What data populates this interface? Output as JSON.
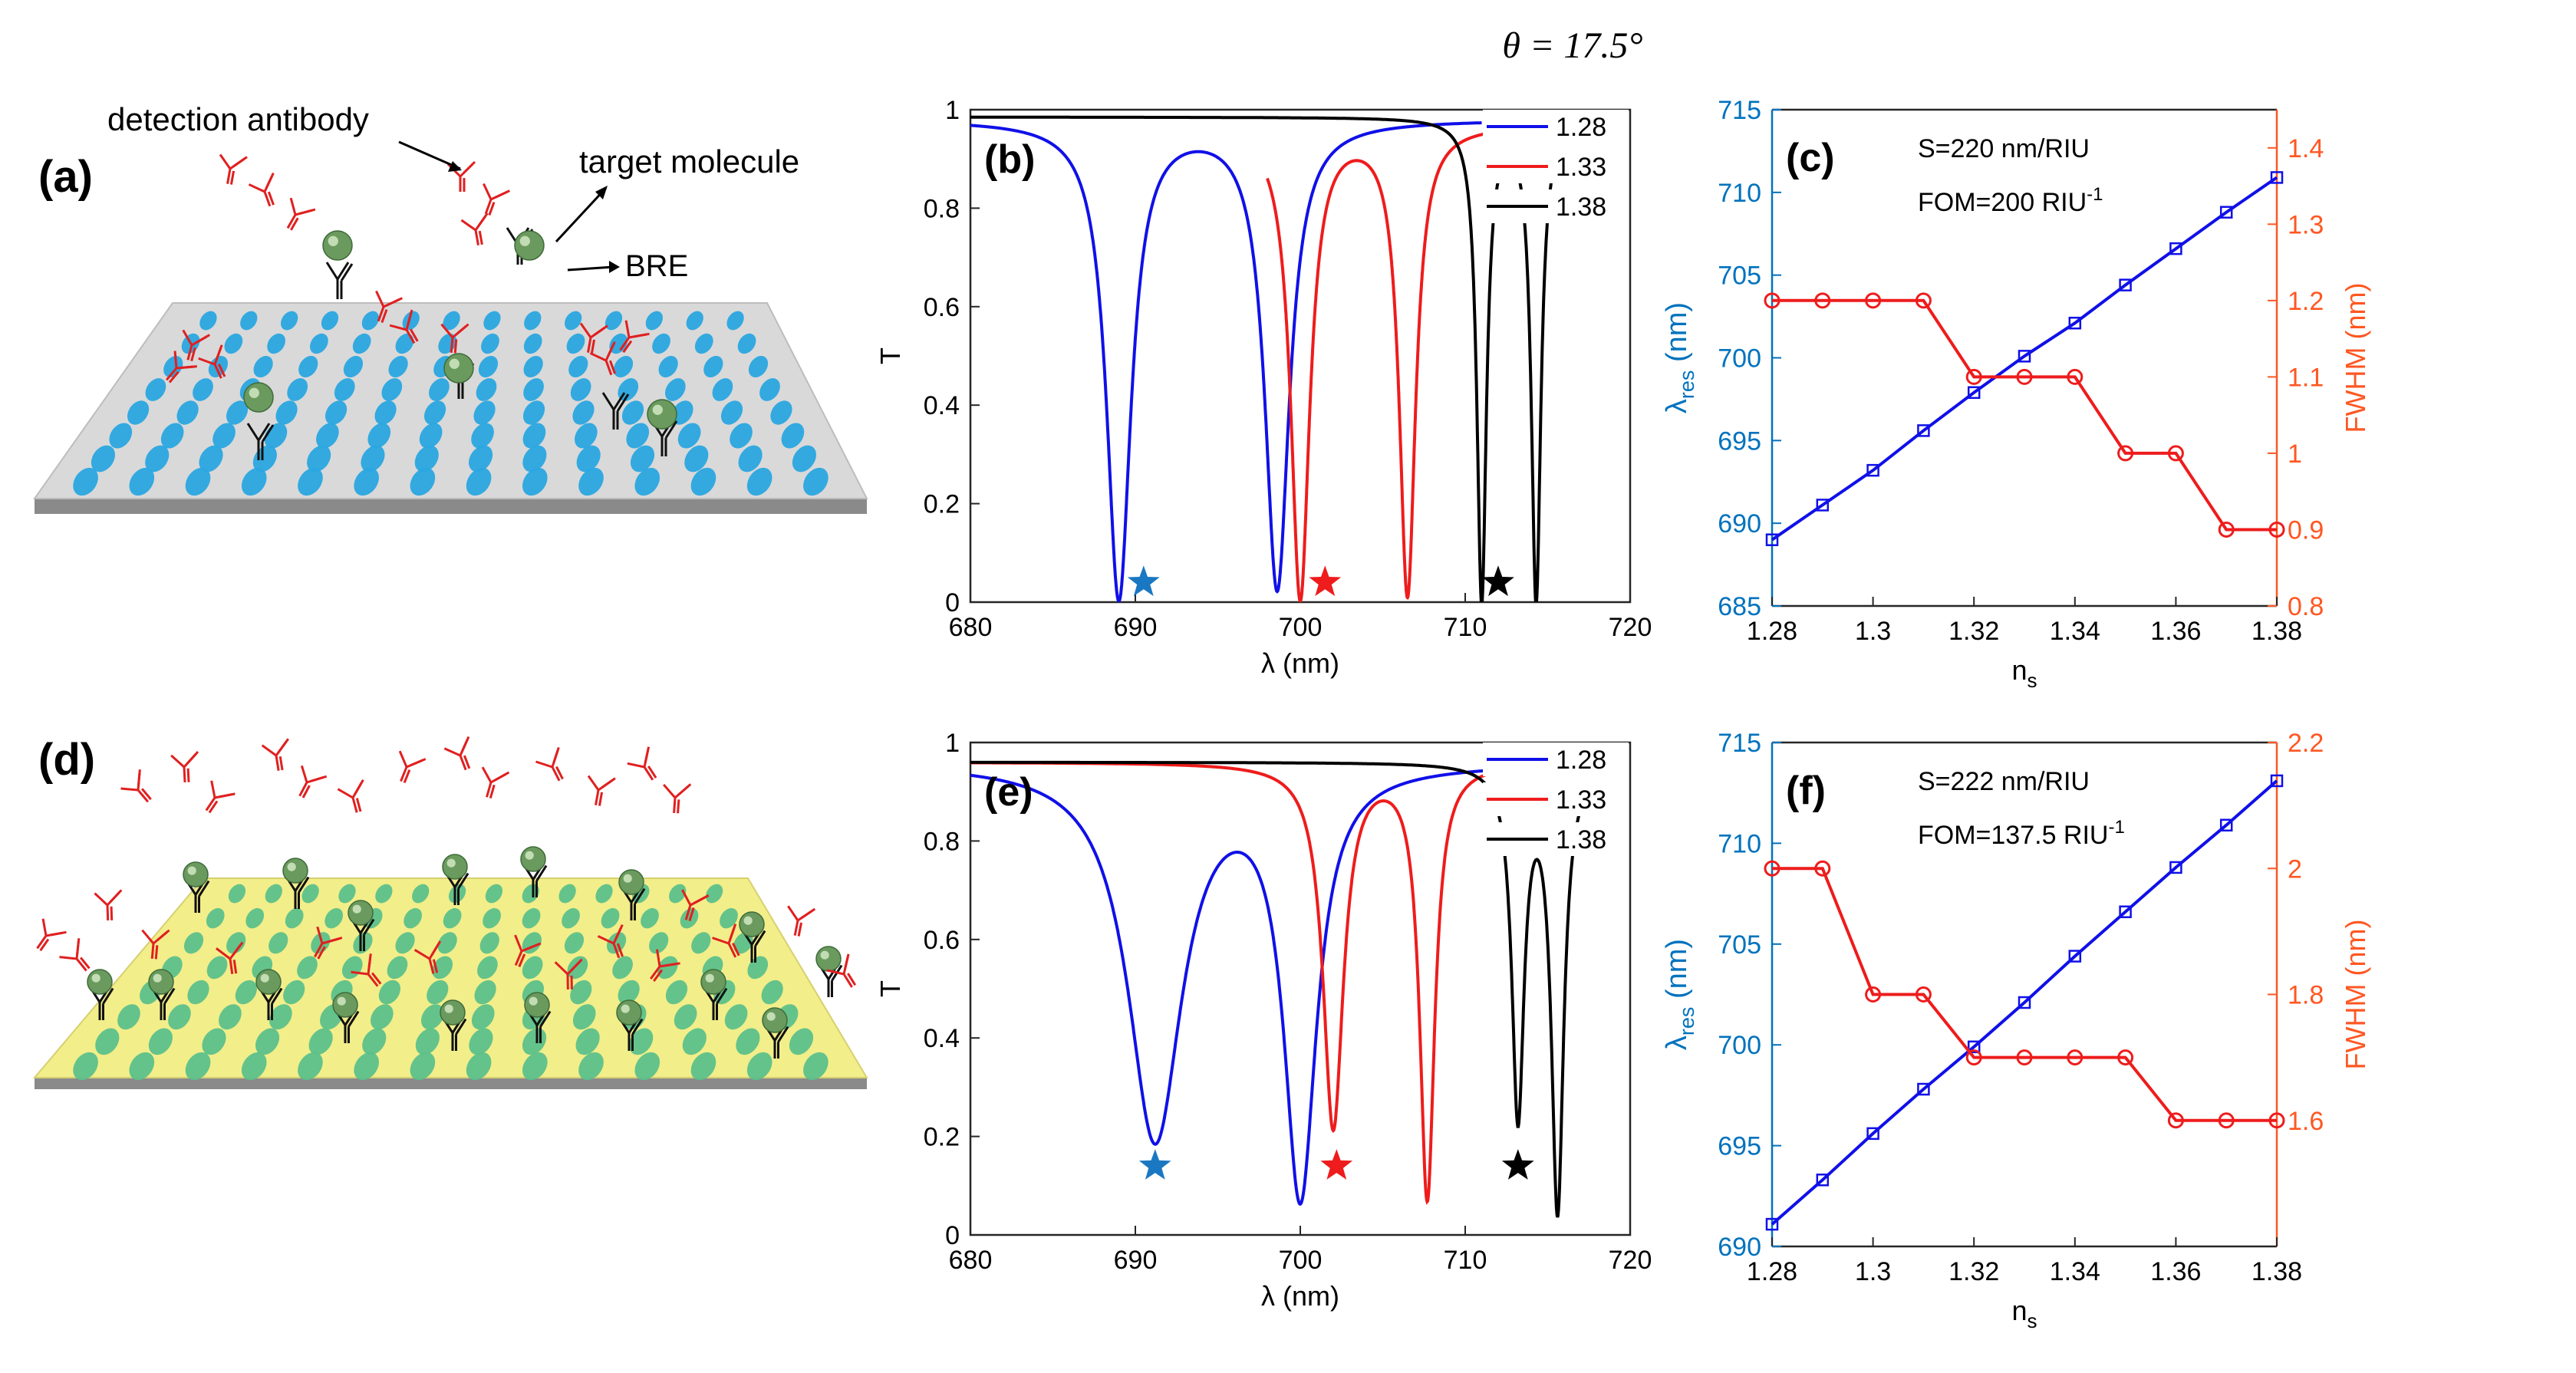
{
  "figure": {
    "theta_label": "θ = 17.5°",
    "colors": {
      "blue": "#1010e8",
      "red": "#ee1c1c",
      "black": "#000000",
      "axis_left": "#0072bd",
      "axis_right": "#ff5722",
      "ff_red": "#e02020"
    }
  },
  "schematic_a": {
    "panel": "(a)",
    "detection_antibody": "detection antibody",
    "target_molecule": "target molecule",
    "bre": "BRE",
    "substrate_color": "#d9d9d9",
    "particle_color": "#2aa6e0"
  },
  "schematic_d": {
    "panel": "(d)",
    "substrate_color": "#f2ee8a",
    "particle_color": "#5cc08a"
  },
  "chart_data": [
    {
      "id": "b",
      "panel": "(b)",
      "type": "line",
      "xlabel": "λ (nm)",
      "ylabel": "T",
      "xlim": [
        680,
        720
      ],
      "ylim": [
        0,
        1
      ],
      "xticks": [
        680,
        690,
        700,
        710,
        720
      ],
      "yticks": [
        0,
        0.2,
        0.4,
        0.6,
        0.8,
        1
      ],
      "legend_position": "top-right",
      "series": [
        {
          "name": "1.28",
          "color": "#1010e8",
          "base": 0.98,
          "dips": [
            [
              689,
              0.97,
              0.9
            ],
            [
              698.6,
              0.95,
              0.9
            ]
          ],
          "x_range": [
            680,
            711
          ]
        },
        {
          "name": "1.33",
          "color": "#ee1c1c",
          "base": 0.97,
          "dips": [
            [
              700,
              0.96,
              0.7
            ],
            [
              706.5,
              0.95,
              0.6
            ]
          ],
          "x_range": [
            698,
            713
          ]
        },
        {
          "name": "1.38",
          "color": "#000000",
          "base": 0.985,
          "dips": [
            [
              711,
              0.98,
              0.35
            ],
            [
              714.3,
              0.98,
              0.35
            ]
          ],
          "x_range": [
            680,
            715.5
          ]
        }
      ],
      "markers": [
        {
          "x": 690.5,
          "y": 0.04,
          "color": "#1a78c2"
        },
        {
          "x": 701.5,
          "y": 0.04,
          "color": "#ee1c1c"
        },
        {
          "x": 712,
          "y": 0.04,
          "color": "#000000"
        }
      ]
    },
    {
      "id": "e",
      "panel": "(e)",
      "type": "line",
      "xlabel": "λ (nm)",
      "ylabel": "T",
      "xlim": [
        680,
        720
      ],
      "ylim": [
        0,
        1
      ],
      "xticks": [
        680,
        690,
        700,
        710,
        720
      ],
      "yticks": [
        0,
        0.2,
        0.4,
        0.6,
        0.8,
        1
      ],
      "legend_position": "top-right",
      "series": [
        {
          "name": "1.28",
          "color": "#1010e8",
          "base": 0.96,
          "dips": [
            [
              691.2,
              0.76,
              2.0
            ],
            [
              700,
              0.86,
              1.2
            ]
          ],
          "x_range": [
            680,
            713
          ]
        },
        {
          "name": "1.33",
          "color": "#ee1c1c",
          "base": 0.96,
          "dips": [
            [
              702,
              0.74,
              0.75
            ],
            [
              707.7,
              0.88,
              0.55
            ]
          ],
          "x_range": [
            680,
            713
          ]
        },
        {
          "name": "1.38",
          "color": "#000000",
          "base": 0.96,
          "dips": [
            [
              713.2,
              0.71,
              0.45
            ],
            [
              715.6,
              0.9,
              0.45
            ]
          ],
          "x_range": [
            680,
            717.5
          ]
        }
      ],
      "markers": [
        {
          "x": 691.2,
          "y": 0.14,
          "color": "#1a78c2"
        },
        {
          "x": 702.2,
          "y": 0.14,
          "color": "#ee1c1c"
        },
        {
          "x": 713.2,
          "y": 0.14,
          "color": "#000000"
        }
      ]
    },
    {
      "id": "c",
      "panel": "(c)",
      "type": "line",
      "xlabel": "n",
      "xlabel_sub": "s",
      "ylabel_left": "λ",
      "ylabel_left_sub": "res",
      "ylabel_left_unit": " (nm)",
      "ylabel_right": "FWHM (nm)",
      "annotation_1": "S=220 nm/RIU",
      "annotation_2": "FOM=200 RIU",
      "annotation_2_sup": "-1",
      "xlim": [
        1.28,
        1.38
      ],
      "xticks": [
        1.28,
        1.3,
        1.32,
        1.34,
        1.36,
        1.38
      ],
      "ylim_left": [
        685,
        715
      ],
      "yticks_left": [
        685,
        690,
        695,
        700,
        705,
        710,
        715
      ],
      "ylim_right": [
        0.8,
        1.45
      ],
      "yticks_right": [
        0.8,
        0.9,
        1,
        1.1,
        1.2,
        1.3,
        1.4
      ],
      "x": [
        1.28,
        1.29,
        1.3,
        1.31,
        1.32,
        1.33,
        1.34,
        1.35,
        1.36,
        1.37,
        1.38
      ],
      "lambda_res": [
        689.0,
        691.1,
        693.2,
        695.6,
        697.9,
        700.1,
        702.1,
        704.4,
        706.6,
        708.8,
        710.9
      ],
      "fwhm": [
        1.2,
        1.2,
        1.2,
        1.2,
        1.1,
        1.1,
        1.1,
        1.0,
        1.0,
        0.9,
        0.9
      ]
    },
    {
      "id": "f",
      "panel": "(f)",
      "type": "line",
      "xlabel": "n",
      "xlabel_sub": "s",
      "ylabel_left": "λ",
      "ylabel_left_sub": "res",
      "ylabel_left_unit": " (nm)",
      "ylabel_right": "FWHM (nm)",
      "annotation_1": "S=222 nm/RIU",
      "annotation_2": "FOM=137.5 RIU",
      "annotation_2_sup": "-1",
      "xlim": [
        1.28,
        1.38
      ],
      "xticks": [
        1.28,
        1.3,
        1.32,
        1.34,
        1.36,
        1.38
      ],
      "ylim_left": [
        690,
        715
      ],
      "yticks_left": [
        690,
        695,
        700,
        705,
        710,
        715
      ],
      "ylim_right": [
        1.4,
        2.2
      ],
      "yticks_right": [
        1.6,
        1.8,
        2,
        2.2
      ],
      "x": [
        1.28,
        1.29,
        1.3,
        1.31,
        1.32,
        1.33,
        1.34,
        1.35,
        1.36,
        1.37,
        1.38
      ],
      "lambda_res": [
        691.1,
        693.3,
        695.6,
        697.8,
        699.9,
        702.1,
        704.4,
        706.6,
        708.8,
        710.9,
        713.1
      ],
      "fwhm": [
        2.0,
        2.0,
        1.8,
        1.8,
        1.7,
        1.7,
        1.7,
        1.7,
        1.6,
        1.6,
        1.6
      ]
    }
  ]
}
